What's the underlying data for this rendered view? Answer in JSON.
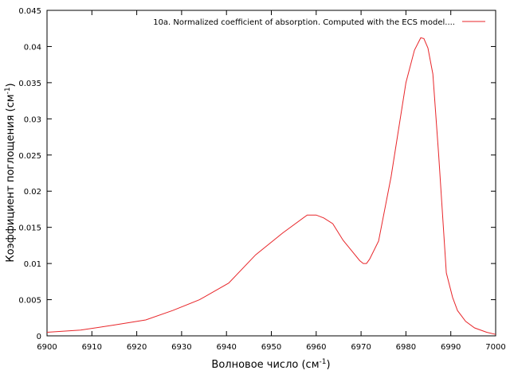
{
  "chart_data": {
    "type": "line",
    "xlabel_main": "Волновое число (см",
    "xlabel_sup": "-1",
    "xlabel_end": ")",
    "ylabel_main": "Коэффициент поглощения (см",
    "ylabel_sup": "-1",
    "ylabel_end": ")",
    "xlim": [
      6900,
      7000
    ],
    "ylim": [
      0,
      0.045
    ],
    "xticks": [
      6900,
      6910,
      6920,
      6930,
      6940,
      6950,
      6960,
      6970,
      6980,
      6990,
      7000
    ],
    "yticks": [
      0,
      0.005,
      0.01,
      0.015,
      0.02,
      0.025,
      0.03,
      0.035,
      0.04,
      0.045
    ],
    "legend_position": "top-right",
    "grid": false,
    "series": [
      {
        "name": "10a. Normalized coefficient of absorption. Computed with the ECS model....",
        "color": "#e8262a",
        "x": [
          6900,
          6907.5,
          6915,
          6922,
          6928,
          6934,
          6940.5,
          6946.5,
          6952.5,
          6958,
          6960,
          6961.7,
          6963.7,
          6966,
          6968,
          6969.7,
          6970.5,
          6971.2,
          6971.9,
          6973.9,
          6976.7,
          6980,
          6981.9,
          6983.3,
          6984,
          6984.9,
          6986,
          6987.3,
          6989,
          6990.4,
          6991.5,
          6993.3,
          6995.3,
          6998,
          7000
        ],
        "y": [
          0.0005,
          0.0008,
          0.0015,
          0.0022,
          0.0035,
          0.005,
          0.0073,
          0.0112,
          0.0142,
          0.0167,
          0.0167,
          0.0163,
          0.0155,
          0.0132,
          0.0117,
          0.0104,
          0.01,
          0.01,
          0.0106,
          0.0131,
          0.022,
          0.035,
          0.0395,
          0.0412,
          0.0411,
          0.0398,
          0.0362,
          0.025,
          0.0087,
          0.0053,
          0.0035,
          0.002,
          0.0011,
          0.0005,
          0.0002
        ]
      }
    ]
  }
}
